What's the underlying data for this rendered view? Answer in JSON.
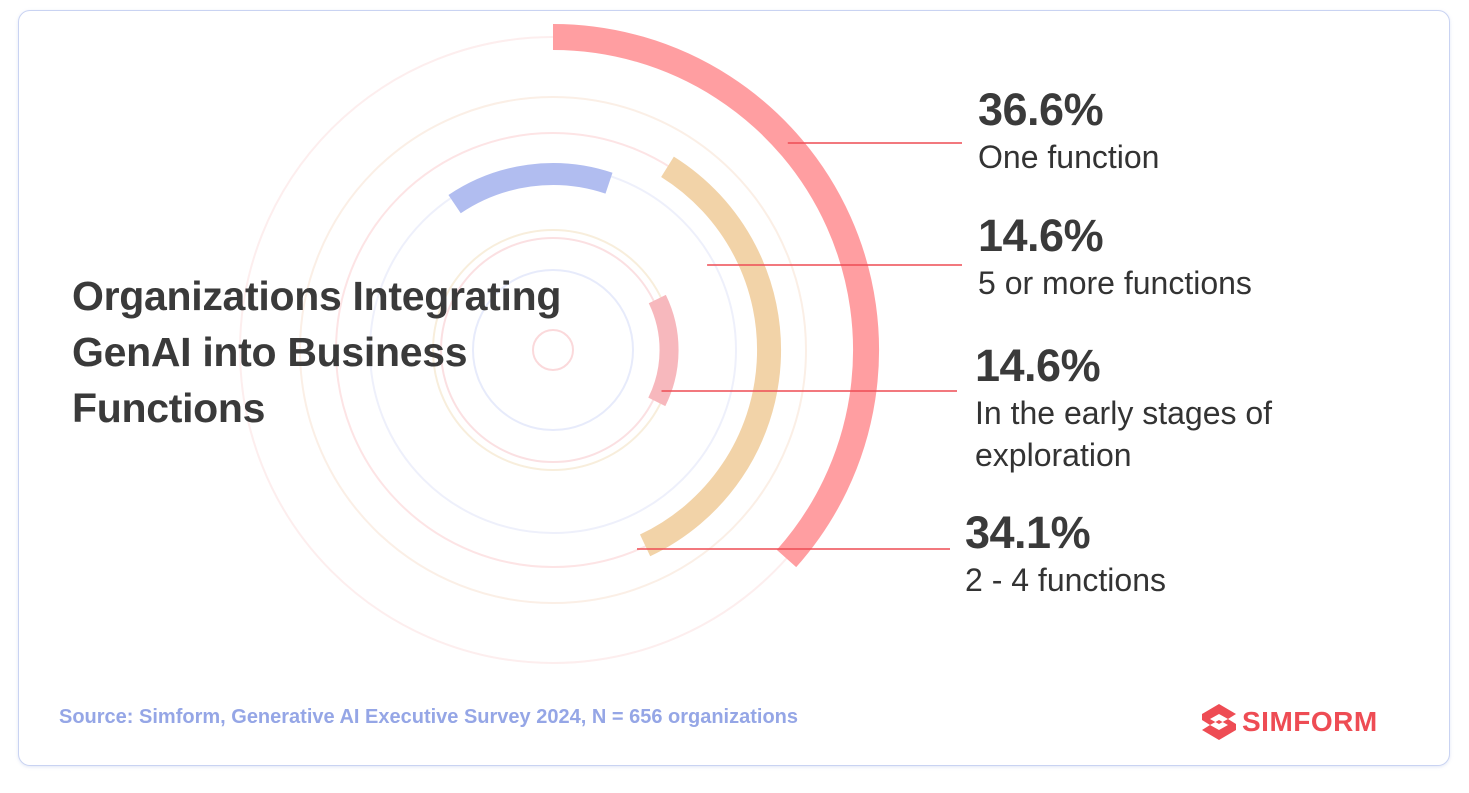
{
  "chart_data": {
    "type": "radial_bar",
    "title": "Organizations Integrating GenAI into Business Functions",
    "series": [
      {
        "value": 36.6,
        "value_label": "36.6%",
        "category": "One function",
        "color": "#ff9ea1"
      },
      {
        "value": 34.1,
        "value_label": "34.1%",
        "category": "2 - 4 functions",
        "color": "#f2d3a8"
      },
      {
        "value": 14.6,
        "value_label": "14.6%",
        "category": "5 or more functions",
        "color": "#b1bdf0"
      },
      {
        "value": 14.6,
        "value_label": "14.6%",
        "category": "In the early stages of exploration",
        "color": "#f7b8bd"
      }
    ],
    "leader_line_color": "#ee4c54"
  },
  "labels": [
    {
      "pct": "36.6%",
      "desc": "One function"
    },
    {
      "pct": "14.6%",
      "desc": "5 or more functions"
    },
    {
      "pct": "14.6%",
      "desc": "In the early stages of exploration"
    },
    {
      "pct": "34.1%",
      "desc": "2 - 4 functions"
    }
  ],
  "footer": {
    "source": "Source: Simform, Generative AI Executive Survey 2024, N = 656 organizations",
    "logo_text": "SIMFORM",
    "logo_icon": "simform-logo-icon",
    "logo_color": "#ee4c54",
    "source_color": "#95a6e6"
  }
}
